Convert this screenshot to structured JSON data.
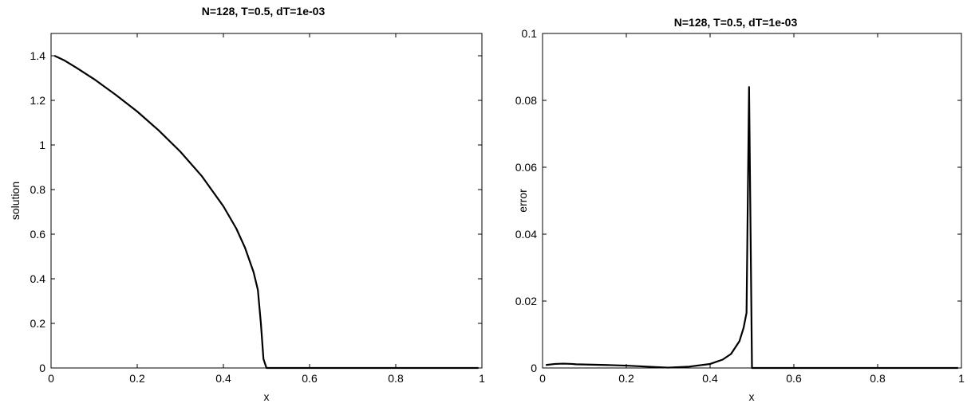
{
  "chart_data": [
    {
      "type": "line",
      "title": "N=128, T=0.5, dT=1e-03",
      "xlabel": "x",
      "ylabel": "solution",
      "xlim": [
        0,
        1
      ],
      "ylim": [
        0,
        1.5
      ],
      "xticks": [
        0,
        0.2,
        0.4,
        0.6,
        0.8,
        1
      ],
      "xtick_labels": [
        "0",
        "0.2",
        "0.4",
        "0.6",
        "0.8",
        "1"
      ],
      "yticks": [
        0,
        0.2,
        0.4,
        0.6,
        0.8,
        1,
        1.2,
        1.4
      ],
      "ytick_labels": [
        "0",
        "0.2",
        "0.4",
        "0.6",
        "0.8",
        "1",
        "1.2",
        "1.4"
      ],
      "grid": false,
      "series": [
        {
          "x": [
            0.008,
            0.03,
            0.06,
            0.1,
            0.15,
            0.2,
            0.25,
            0.3,
            0.35,
            0.4,
            0.43,
            0.45,
            0.47,
            0.48,
            0.487,
            0.493,
            0.5,
            0.51,
            0.6,
            0.7,
            0.8,
            0.9,
            0.992
          ],
          "y": [
            1.4,
            1.38,
            1.345,
            1.295,
            1.225,
            1.15,
            1.065,
            0.97,
            0.86,
            0.725,
            0.625,
            0.54,
            0.43,
            0.35,
            0.2,
            0.04,
            0.0,
            0.0,
            0.0,
            0.0,
            0.0,
            0.0,
            0.0
          ]
        }
      ]
    },
    {
      "type": "line",
      "title": "N=128, T=0.5, dT=1e-03",
      "xlabel": "x",
      "ylabel": "error",
      "xlim": [
        0,
        1
      ],
      "ylim": [
        0,
        0.1
      ],
      "xticks": [
        0,
        0.2,
        0.4,
        0.6,
        0.8,
        1
      ],
      "xtick_labels": [
        "0",
        "0.2",
        "0.4",
        "0.6",
        "0.8",
        "1"
      ],
      "yticks": [
        0,
        0.02,
        0.04,
        0.06,
        0.08,
        0.1
      ],
      "ytick_labels": [
        "0",
        "0.02",
        "0.04",
        "0.06",
        "0.08",
        "0.1"
      ],
      "grid": false,
      "series": [
        {
          "x": [
            0.008,
            0.03,
            0.05,
            0.07,
            0.08,
            0.15,
            0.2,
            0.25,
            0.3,
            0.35,
            0.4,
            0.43,
            0.45,
            0.47,
            0.48,
            0.487,
            0.493,
            0.5,
            0.505,
            0.6,
            0.7,
            0.8,
            0.9,
            0.992
          ],
          "y": [
            0.0009,
            0.0012,
            0.0013,
            0.0012,
            0.0011,
            0.0009,
            0.0007,
            0.0004,
            0.0001,
            0.0004,
            0.0012,
            0.0025,
            0.0042,
            0.008,
            0.012,
            0.0165,
            0.084,
            0.0,
            0.0,
            0.0,
            0.0,
            0.0,
            0.0,
            0.0
          ]
        }
      ]
    }
  ]
}
